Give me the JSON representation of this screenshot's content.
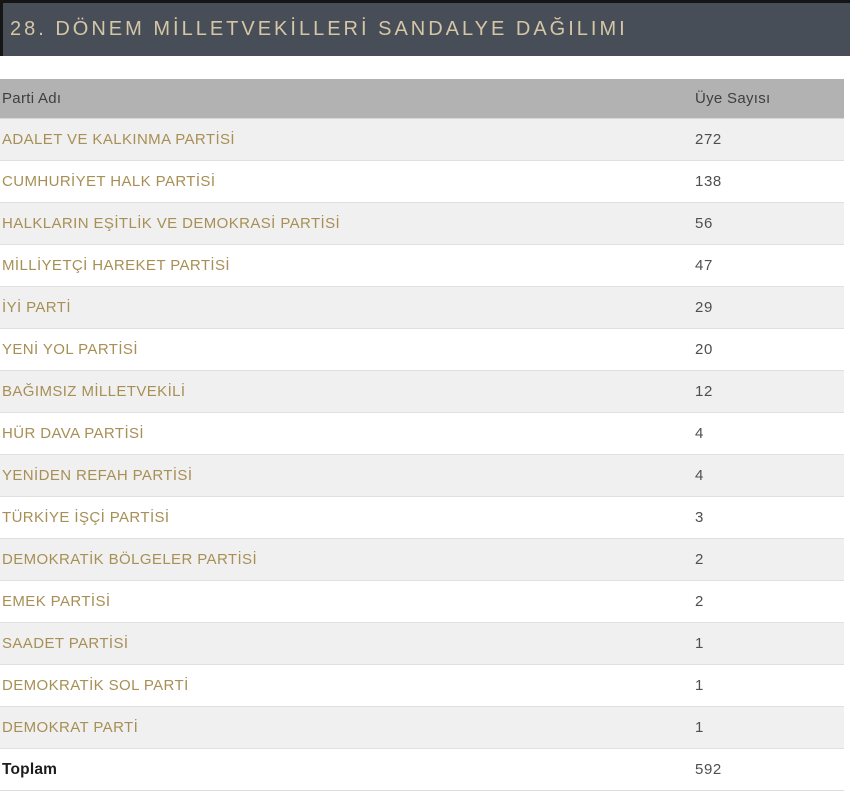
{
  "title_bar": {
    "title": "28. DÖNEM MİLLETVEKİLLERİ SANDALYE DAĞILIMI"
  },
  "table": {
    "columns": [
      "Parti Adı",
      "Üye Sayısı"
    ],
    "rows": [
      {
        "party": "ADALET VE KALKINMA PARTİSİ",
        "seats": "272"
      },
      {
        "party": "CUMHURİYET HALK PARTİSİ",
        "seats": "138"
      },
      {
        "party": "HALKLARIN EŞİTLİK VE DEMOKRASİ PARTİSİ",
        "seats": "56"
      },
      {
        "party": "MİLLİYETÇİ HAREKET PARTİSİ",
        "seats": "47"
      },
      {
        "party": "İYİ PARTİ",
        "seats": "29"
      },
      {
        "party": "YENİ YOL PARTİSİ",
        "seats": "20"
      },
      {
        "party": "BAĞIMSIZ MİLLETVEKİLİ",
        "seats": "12"
      },
      {
        "party": "HÜR DAVA PARTİSİ",
        "seats": "4"
      },
      {
        "party": "YENİDEN REFAH PARTİSİ",
        "seats": "4"
      },
      {
        "party": "TÜRKİYE İŞÇİ PARTİSİ",
        "seats": "3"
      },
      {
        "party": "DEMOKRATİK BÖLGELER PARTİSİ",
        "seats": "2"
      },
      {
        "party": "EMEK PARTİSİ",
        "seats": "2"
      },
      {
        "party": "SAADET PARTİSİ",
        "seats": "1"
      },
      {
        "party": "DEMOKRATİK SOL PARTİ",
        "seats": "1"
      },
      {
        "party": "DEMOKRAT PARTİ",
        "seats": "1"
      }
    ],
    "total_label": "Toplam",
    "total_value": "592"
  },
  "colors": {
    "title_bar_bg": "#484e57",
    "title_bar_border": "#151515",
    "title_text": "#d5c6a6",
    "table_header_bg": "#b2b2b2",
    "table_header_text": "#3f3f3f",
    "party_link": "#a78f55",
    "count_text": "#4f4f4f",
    "stripe_row_bg": "#f0f0f0",
    "total_text": "#1c1c1c"
  },
  "chart_data": {
    "type": "table",
    "title": "28. DÖNEM MİLLETVEKİLLERİ SANDALYE DAĞILIMI",
    "columns": [
      "Parti Adı",
      "Üye Sayısı"
    ],
    "rows": [
      [
        "ADALET VE KALKINMA PARTİSİ",
        272
      ],
      [
        "CUMHURİYET HALK PARTİSİ",
        138
      ],
      [
        "HALKLARIN EŞİTLİK VE DEMOKRASİ PARTİSİ",
        56
      ],
      [
        "MİLLİYETÇİ HAREKET PARTİSİ",
        47
      ],
      [
        "İYİ PARTİ",
        29
      ],
      [
        "YENİ YOL PARTİSİ",
        20
      ],
      [
        "BAĞIMSIZ MİLLETVEKİLİ",
        12
      ],
      [
        "HÜR DAVA PARTİSİ",
        4
      ],
      [
        "YENİDEN REFAH PARTİSİ",
        4
      ],
      [
        "TÜRKİYE İŞÇİ PARTİSİ",
        3
      ],
      [
        "DEMOKRATİK BÖLGELER PARTİSİ",
        2
      ],
      [
        "EMEK PARTİSİ",
        2
      ],
      [
        "SAADET PARTİSİ",
        1
      ],
      [
        "DEMOKRATİK SOL PARTİ",
        1
      ],
      [
        "DEMOKRAT PARTİ",
        1
      ]
    ],
    "total": [
      "Toplam",
      592
    ]
  }
}
